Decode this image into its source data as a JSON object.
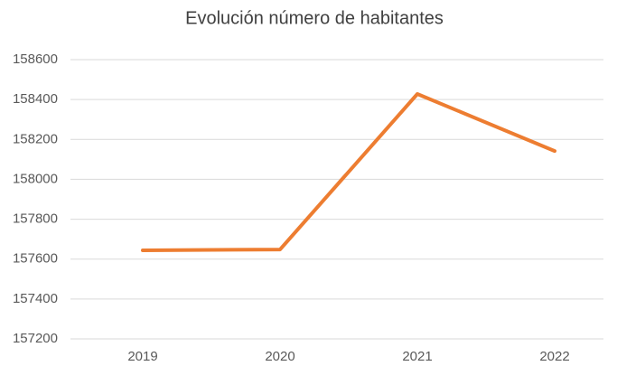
{
  "chart_data": {
    "type": "line",
    "title": "Evolución número de habitantes",
    "categories": [
      "2019",
      "2020",
      "2021",
      "2022"
    ],
    "series": [
      {
        "color": "#ed7d31",
        "values": [
          157644,
          157648,
          158428,
          158142
        ]
      }
    ],
    "ylim": [
      157200,
      158600
    ],
    "yticks": [
      157200,
      157400,
      157600,
      157800,
      158000,
      158200,
      158400,
      158600
    ],
    "grid": true
  }
}
